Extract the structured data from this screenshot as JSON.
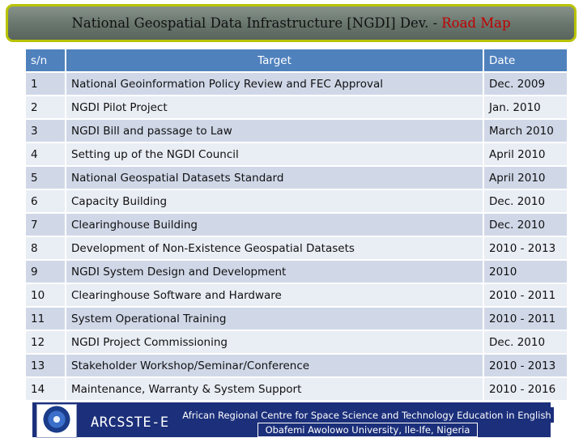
{
  "title": {
    "main": "National Geospatial Data Infrastructure [NGDI] Dev. -",
    "accent": "Road Map",
    "accent_color": "#c00000"
  },
  "table": {
    "headers": [
      "s/n",
      "Target",
      "Date"
    ],
    "rows": [
      [
        "1",
        "National Geoinformation Policy Review and FEC Approval",
        "Dec. 2009"
      ],
      [
        "2",
        "NGDI Pilot Project",
        "Jan. 2010"
      ],
      [
        "3",
        "NGDI Bill and passage to Law",
        "March 2010"
      ],
      [
        "4",
        "Setting up of the NGDI Council",
        "April 2010"
      ],
      [
        "5",
        "National Geospatial Datasets Standard",
        "April 2010"
      ],
      [
        "6",
        "Capacity Building",
        "Dec. 2010"
      ],
      [
        "7",
        "Clearinghouse Building",
        "Dec. 2010"
      ],
      [
        "8",
        "Development of Non-Existence Geospatial Datasets",
        "2010 - 2013"
      ],
      [
        "9",
        "NGDI System Design and Development",
        "2010"
      ],
      [
        "10",
        "Clearinghouse Software and Hardware",
        "2010 - 2011"
      ],
      [
        "11",
        "System Operational Training",
        "2010 - 2011"
      ],
      [
        "12",
        "NGDI Project Commissioning",
        "Dec. 2010"
      ],
      [
        "13",
        "Stakeholder Workshop/Seminar/Conference",
        "2010 - 2013"
      ],
      [
        "14",
        "Maintenance, Warranty & System Support",
        "2010 - 2016"
      ]
    ],
    "header_color": "#4f81bd"
  },
  "footer": {
    "logo_icon": "institution-logo-icon",
    "acronym": "ARCSSTE-E",
    "line1": "African Regional Centre for Space Science and Technology Education in English",
    "line2": "Obafemi Awolowo University, Ile-Ife, Nigeria"
  }
}
